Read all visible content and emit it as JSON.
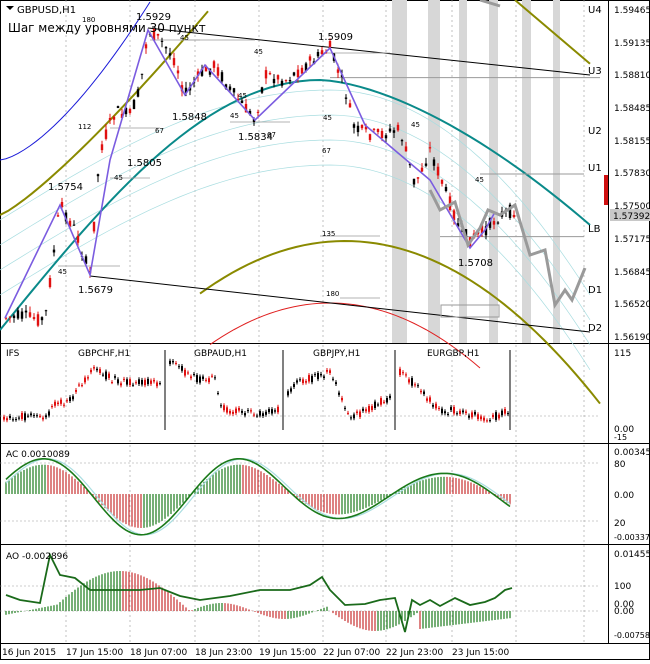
{
  "colors": {
    "background": "#ffffff",
    "frame": "#000000",
    "grid": "#9a9a9a",
    "bull": "#000000",
    "bear": "#e01010",
    "zigzag": "#7b5ce0",
    "projection": "#9a9a9a",
    "shade": "#d7d7d7",
    "teal_curve": "#0a8a8a",
    "olive_curve": "#8a8a00",
    "blue_curve": "#1a1ad8",
    "red_curve": "#e02020",
    "light_curve": "#a8dde0",
    "ac_green": "#1a7a1a",
    "ac_red": "#c83030",
    "ao_line": "#1a6a1a",
    "current_price_bg": "#c8c8c8",
    "bar_red": "#d01010"
  },
  "main": {
    "symbol_title": "GBPUSD,H1",
    "subtitle": "Шаг между уровнями 30 пункт",
    "price_axis": [
      "1.59465",
      "1.59135",
      "1.58810",
      "1.58485",
      "1.58155",
      "1.57830",
      "1.57500",
      "1.57175",
      "1.56845",
      "1.56520",
      "1.56190"
    ],
    "current_price": "1.57392",
    "level_labels": [
      "U4",
      "U3",
      "U2",
      "U1",
      "LB",
      "D1",
      "D2"
    ],
    "peak_labels": [
      "1.5929",
      "1.5909",
      "1.5848",
      "1.5834",
      "1.5805",
      "1.5754",
      "1.5679",
      "1.5708"
    ],
    "count_labels": [
      "180",
      "45",
      "45",
      "112",
      "67",
      "45",
      "45",
      "67",
      "45",
      "45",
      "45",
      "67",
      "45",
      "135",
      "180",
      "45"
    ]
  },
  "ifs": {
    "title": "IFS",
    "pairs": [
      "GBPCHF,H1",
      "GBPAUD,H1",
      "GBPJPY,H1",
      "EURGBP,H1"
    ],
    "axis": [
      "115",
      "0.00",
      "-15"
    ]
  },
  "ac": {
    "title": "AC 0.0010089",
    "axis": [
      "0.003450",
      "80",
      "0.00",
      "20",
      "-0.003370"
    ]
  },
  "ao": {
    "title": "AO -0.002896",
    "axis": [
      "0.014558",
      "100",
      "0.00",
      "0.00",
      "-0.007582"
    ]
  },
  "time_axis": [
    "16 Jun 2015",
    "17 Jun 15:00",
    "18 Jun 07:00",
    "18 Jun 23:00",
    "19 Jun 15:00",
    "22 Jun 07:00",
    "22 Jun 23:00",
    "23 Jun 15:00"
  ],
  "chart_data": [
    {
      "type": "line",
      "title": "GBPUSD,H1",
      "subtitle": "Шаг между уровнями 30 пункт",
      "x": [
        "16 Jun 2015",
        "17 Jun 15:00",
        "18 Jun 07:00",
        "18 Jun 23:00",
        "19 Jun 15:00",
        "22 Jun 07:00",
        "22 Jun 23:00",
        "23 Jun 15:00"
      ],
      "ylim": [
        1.5619,
        1.5951
      ],
      "series": [
        {
          "name": "",
          "points": [
            [
              0,
              1.564
            ],
            [
              1,
              1.565
            ],
            [
              2,
              1.5754
            ],
            [
              3,
              1.5679
            ],
            [
              4,
              1.5805
            ],
            [
              5,
              1.5929
            ],
            [
              6,
              1.5848
            ],
            [
              7,
              1.5834
            ],
            [
              8,
              1.5909
            ],
            [
              9,
              1.576
            ],
            [
              10,
              1.5708
            ],
            [
              11,
              1.5739
            ]
          ]
        }
      ],
      "pivots": [
        1.5929,
        1.5909,
        1.5848,
        1.5834,
        1.5805,
        1.5754,
        1.5679,
        1.5708
      ],
      "current_price": 1.57392,
      "levels": {
        "U4": 1.5946,
        "U3": 1.5881,
        "U2": 1.582,
        "U1": 1.5784,
        "LB": 1.5721,
        "D1": 1.5661,
        "D2": 1.5627
      },
      "grid": true
    },
    {
      "type": "bar",
      "title": "AC 0.0010089",
      "ylim": [
        -0.00337,
        0.00345
      ],
      "grid": true
    },
    {
      "type": "bar",
      "title": "AO -0.002896",
      "ylim": [
        -0.007582,
        0.014558
      ],
      "grid": true
    }
  ]
}
